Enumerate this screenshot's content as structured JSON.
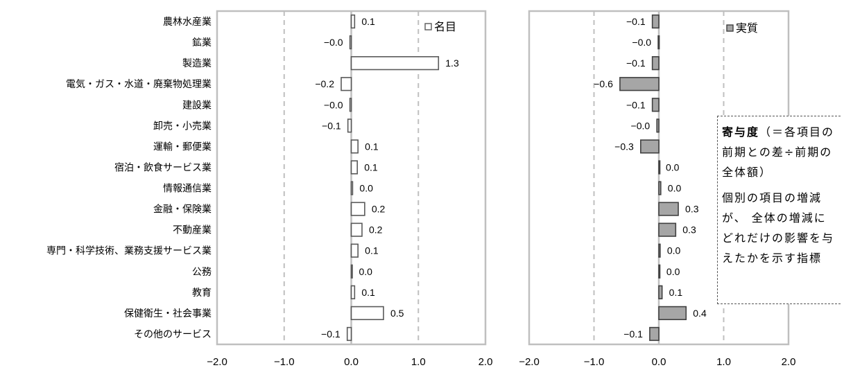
{
  "chart_data": [
    {
      "type": "bar",
      "orientation": "horizontal",
      "categories": [
        "農林水産業",
        "鉱業",
        "製造業",
        "電気・ガス・水道・廃棄物処理業",
        "建設業",
        "卸売・小売業",
        "運輸・郵便業",
        "宿泊・飲食サービス業",
        "情報通信業",
        "金融・保険業",
        "不動産業",
        "専門・科学技術、業務支援サービス業",
        "公務",
        "教育",
        "保健衛生・社会事業",
        "その他のサービス"
      ],
      "series": [
        {
          "name": "名目",
          "values": [
            0.05,
            -0.02,
            1.3,
            -0.15,
            -0.02,
            -0.05,
            0.1,
            0.09,
            0.02,
            0.2,
            0.16,
            0.1,
            0.01,
            0.05,
            0.48,
            -0.06
          ]
        }
      ],
      "data_labels": [
        "0.1",
        "−0.0",
        "1.3",
        "−0.2",
        "−0.0",
        "−0.1",
        "0.1",
        "0.1",
        "0.0",
        "0.2",
        "0.2",
        "0.1",
        "0.0",
        "0.1",
        "0.5",
        "−0.1"
      ],
      "xlim": [
        -2.0,
        2.0
      ],
      "x_ticks": [
        "−2.0",
        "−1.0",
        "0.0",
        "1.0",
        "2.0"
      ],
      "grid": "dashed vertical at −1.0 and 1.0",
      "legend": "top-right",
      "color": "#ffffff",
      "edge_color": "#595959"
    },
    {
      "type": "bar",
      "orientation": "horizontal",
      "categories": [
        "農林水産業",
        "鉱業",
        "製造業",
        "電気・ガス・水道・廃棄物処理業",
        "建設業",
        "卸売・小売業",
        "運輸・郵便業",
        "宿泊・飲食サービス業",
        "情報通信業",
        "金融・保険業",
        "不動産業",
        "専門・科学技術、業務支援サービス業",
        "公務",
        "教育",
        "保健衛生・社会事業",
        "その他のサービス"
      ],
      "series": [
        {
          "name": "実質",
          "values": [
            -0.1,
            -0.01,
            -0.1,
            -0.6,
            -0.1,
            -0.03,
            -0.28,
            0.0,
            0.03,
            0.3,
            0.26,
            0.02,
            0.01,
            0.05,
            0.42,
            -0.14
          ]
        }
      ],
      "data_labels": [
        "−0.1",
        "−0.0",
        "−0.1",
        "−0.6",
        "−0.1",
        "−0.0",
        "−0.3",
        "0.0",
        "0.0",
        "0.3",
        "0.3",
        "0.0",
        "0.0",
        "0.1",
        "0.4",
        "−0.1"
      ],
      "xlim": [
        -2.0,
        2.0
      ],
      "x_ticks": [
        "−2.0",
        "−1.0",
        "0.0",
        "1.0",
        "2.0"
      ],
      "grid": "dashed vertical at −1.0 and 1.0",
      "legend": "top-right",
      "color": "#a6a6a6",
      "edge_color": "#404040"
    }
  ],
  "note": {
    "title": "寄与度",
    "definition": "（＝各項目の前期との差÷前期の全体額）",
    "body": "個別の項目の増減が、 全体の増減にどれだけの影響を与えたかを示す指標"
  },
  "colors": {
    "axis": "#bfbfbf",
    "grid": "#bfbfbf"
  }
}
